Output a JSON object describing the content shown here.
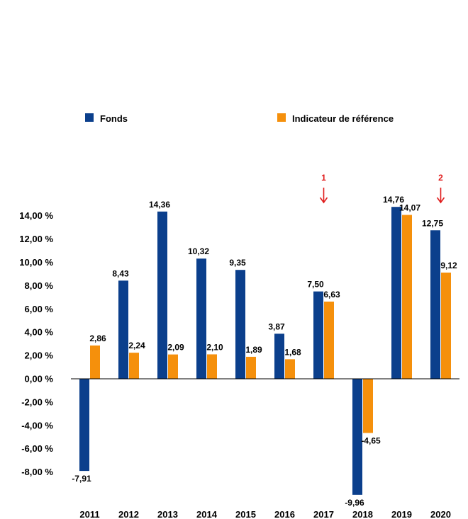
{
  "chart_data": {
    "type": "bar",
    "categories": [
      "2011",
      "2012",
      "2013",
      "2014",
      "2015",
      "2016",
      "2017",
      "2018",
      "2019",
      "2020"
    ],
    "series": [
      {
        "name": "Fonds",
        "color": "#0b3f8c",
        "values": [
          -7.91,
          8.43,
          14.36,
          10.32,
          9.35,
          3.87,
          7.5,
          -9.96,
          14.76,
          12.75
        ],
        "labels": [
          "-7,91",
          "8,43",
          "14,36",
          "10,32",
          "9,35",
          "3,87",
          "7,50",
          "-9,96",
          "14,76",
          "12,75"
        ]
      },
      {
        "name": "Indicateur de référence",
        "color": "#f5900c",
        "values": [
          2.86,
          2.24,
          2.09,
          2.1,
          1.89,
          1.68,
          6.63,
          -4.65,
          14.07,
          9.12
        ],
        "labels": [
          "2,86",
          "2,24",
          "2,09",
          "2,10",
          "1,89",
          "1,68",
          "6,63",
          "-4,65",
          "14,07",
          "9,12"
        ]
      }
    ],
    "y_ticks": [
      14,
      12,
      10,
      8,
      6,
      4,
      2,
      0,
      -2,
      -4,
      -6,
      -8
    ],
    "y_tick_labels": [
      "14,00 %",
      "12,00 %",
      "10,00 %",
      "8,00 %",
      "6,00 %",
      "4,00 %",
      "2,00 %",
      "0,00 %",
      "-2,00 %",
      "-4,00 %",
      "-6,00 %",
      "-8,00 %"
    ],
    "ylim": [
      -10,
      16
    ],
    "grid": false,
    "legend_position": "top",
    "markers": [
      {
        "category": "2017",
        "label": "1",
        "color": "#e01b1b"
      },
      {
        "category": "2020",
        "label": "2",
        "color": "#e01b1b"
      }
    ]
  }
}
